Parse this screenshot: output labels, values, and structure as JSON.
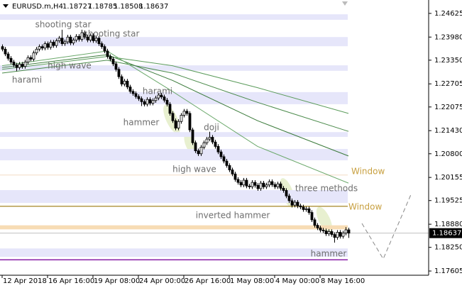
{
  "chart_data": {
    "type": "candlestick",
    "symbol": "EURUSD.m,H4",
    "ylim": [
      1.1749,
      1.2499
    ],
    "yticks": [
      1.24625,
      {
        "value": 1.2398,
        "label": "1.23980"
      },
      {
        "value": 1.2335,
        "label": "1.23350"
      },
      1.22705,
      1.22075,
      {
        "value": 1.2143,
        "label": "1.21430"
      },
      {
        "value": 1.208,
        "label": "1.20800"
      },
      1.20155,
      1.19525,
      {
        "value": 1.1888,
        "label": "1.18880"
      },
      {
        "value": 1.1825,
        "label": "1.18250"
      },
      1.17605
    ],
    "xticks": [
      {
        "value": 0,
        "label": "12 Apr 2018"
      },
      {
        "value": 16,
        "label": "16 Apr 16:00"
      },
      {
        "value": 32,
        "label": "19 Apr 08:00"
      },
      {
        "value": 48,
        "label": "24 Apr 00:00"
      },
      {
        "value": 64,
        "label": "26 Apr 16:00"
      },
      {
        "value": 80,
        "label": "1 May 08:00"
      },
      {
        "value": 96,
        "label": "4 May 00:00"
      },
      {
        "value": 112,
        "label": "8 May 16:00"
      }
    ],
    "bull_color": "#ffffff",
    "bear_color": "#000000",
    "wick_color": "#000000",
    "ohlc": [
      [
        1.2372,
        1.2378,
        1.2359,
        1.2365
      ],
      [
        1.2365,
        1.2371,
        1.2346,
        1.2352
      ],
      [
        1.2352,
        1.2358,
        1.2334,
        1.234
      ],
      [
        1.234,
        1.2346,
        1.2324,
        1.233
      ],
      [
        1.233,
        1.2336,
        1.2316,
        1.2322
      ],
      [
        1.2322,
        1.2328,
        1.2305,
        1.2315
      ],
      [
        1.2315,
        1.233,
        1.2309,
        1.2324
      ],
      [
        1.2324,
        1.233,
        1.2312,
        1.2318
      ],
      [
        1.2318,
        1.2336,
        1.2312,
        1.233
      ],
      [
        1.233,
        1.2348,
        1.2324,
        1.2342
      ],
      [
        1.2342,
        1.2348,
        1.2332,
        1.2338
      ],
      [
        1.2338,
        1.2361,
        1.2332,
        1.2355
      ],
      [
        1.2355,
        1.2371,
        1.2349,
        1.2365
      ],
      [
        1.2365,
        1.2378,
        1.2359,
        1.2372
      ],
      [
        1.2372,
        1.2378,
        1.2362,
        1.2368
      ],
      [
        1.2368,
        1.2386,
        1.2362,
        1.238
      ],
      [
        1.238,
        1.2386,
        1.2364,
        1.237
      ],
      [
        1.237,
        1.239,
        1.2364,
        1.2384
      ],
      [
        1.2384,
        1.239,
        1.2369,
        1.2375
      ],
      [
        1.2375,
        1.2394,
        1.2369,
        1.2388
      ],
      [
        1.2388,
        1.2401,
        1.2382,
        1.2395
      ],
      [
        1.2395,
        1.2418,
        1.2374,
        1.238
      ],
      [
        1.238,
        1.2391,
        1.2374,
        1.2385
      ],
      [
        1.2385,
        1.2404,
        1.2379,
        1.2398
      ],
      [
        1.2398,
        1.2404,
        1.2376,
        1.2382
      ],
      [
        1.2382,
        1.2396,
        1.2376,
        1.239
      ],
      [
        1.239,
        1.2406,
        1.2384,
        1.24
      ],
      [
        1.24,
        1.2406,
        1.2386,
        1.2392
      ],
      [
        1.2392,
        1.2418,
        1.2386,
        1.241
      ],
      [
        1.241,
        1.2416,
        1.2392,
        1.2398
      ],
      [
        1.2398,
        1.2404,
        1.2384,
        1.239
      ],
      [
        1.239,
        1.2408,
        1.2384,
        1.2402
      ],
      [
        1.2402,
        1.2408,
        1.2382,
        1.2388
      ],
      [
        1.2388,
        1.2401,
        1.2382,
        1.2395
      ],
      [
        1.2395,
        1.2401,
        1.2374,
        1.238
      ],
      [
        1.238,
        1.2386,
        1.2366,
        1.2372
      ],
      [
        1.2372,
        1.2378,
        1.2354,
        1.236
      ],
      [
        1.236,
        1.2366,
        1.2339,
        1.2345
      ],
      [
        1.2345,
        1.2351,
        1.2332,
        1.2338
      ],
      [
        1.2338,
        1.2344,
        1.2319,
        1.2325
      ],
      [
        1.2325,
        1.2331,
        1.2304,
        1.231
      ],
      [
        1.231,
        1.2316,
        1.2284,
        1.229
      ],
      [
        1.229,
        1.2296,
        1.2264,
        1.227
      ],
      [
        1.227,
        1.2284,
        1.2264,
        1.2278
      ],
      [
        1.2278,
        1.2284,
        1.2256,
        1.2262
      ],
      [
        1.2262,
        1.2268,
        1.2244,
        1.225
      ],
      [
        1.225,
        1.2256,
        1.2238,
        1.2244
      ],
      [
        1.2244,
        1.225,
        1.223,
        1.2236
      ],
      [
        1.2236,
        1.2242,
        1.2224,
        1.223
      ],
      [
        1.223,
        1.2236,
        1.221,
        1.2222
      ],
      [
        1.2222,
        1.2228,
        1.2209,
        1.2215
      ],
      [
        1.2215,
        1.2234,
        1.2209,
        1.2228
      ],
      [
        1.2228,
        1.2234,
        1.2212,
        1.2218
      ],
      [
        1.2218,
        1.2231,
        1.2212,
        1.2225
      ],
      [
        1.2225,
        1.2238,
        1.2219,
        1.2232
      ],
      [
        1.2232,
        1.2246,
        1.2226,
        1.224
      ],
      [
        1.224,
        1.2246,
        1.2229,
        1.2235
      ],
      [
        1.2235,
        1.2241,
        1.222,
        1.2226
      ],
      [
        1.2226,
        1.2232,
        1.2209,
        1.2215
      ],
      [
        1.2215,
        1.2221,
        1.2184,
        1.219
      ],
      [
        1.219,
        1.2196,
        1.2164,
        1.217
      ],
      [
        1.217,
        1.2176,
        1.2144,
        1.215
      ],
      [
        1.215,
        1.2174,
        1.2144,
        1.2168
      ],
      [
        1.2168,
        1.2191,
        1.2162,
        1.2185
      ],
      [
        1.2185,
        1.2202,
        1.2179,
        1.2196
      ],
      [
        1.2196,
        1.2202,
        1.2184,
        1.219
      ],
      [
        1.219,
        1.2196,
        1.2139,
        1.2145
      ],
      [
        1.2145,
        1.2151,
        1.2104,
        1.211
      ],
      [
        1.211,
        1.2116,
        1.2082,
        1.2088
      ],
      [
        1.2088,
        1.2094,
        1.2074,
        1.208
      ],
      [
        1.208,
        1.2104,
        1.2074,
        1.2098
      ],
      [
        1.2098,
        1.2116,
        1.2092,
        1.211
      ],
      [
        1.211,
        1.2126,
        1.2104,
        1.212
      ],
      [
        1.212,
        1.214,
        1.2114,
        1.2125
      ],
      [
        1.2125,
        1.2131,
        1.2106,
        1.2112
      ],
      [
        1.2112,
        1.2118,
        1.2094,
        1.21
      ],
      [
        1.21,
        1.2106,
        1.2079,
        1.2085
      ],
      [
        1.2085,
        1.2091,
        1.2066,
        1.2072
      ],
      [
        1.2072,
        1.2078,
        1.2054,
        1.206
      ],
      [
        1.206,
        1.2066,
        1.2042,
        1.2048
      ],
      [
        1.2048,
        1.2054,
        1.203,
        1.2036
      ],
      [
        1.2036,
        1.2042,
        1.2019,
        1.2025
      ],
      [
        1.2025,
        1.2031,
        1.2004,
        1.201
      ],
      [
        1.201,
        1.2016,
        1.1996,
        1.2002
      ],
      [
        1.2002,
        1.2008,
        1.1989,
        1.1995
      ],
      [
        1.1995,
        1.2014,
        1.1989,
        1.2008
      ],
      [
        1.2008,
        1.2014,
        1.1986,
        1.1992
      ],
      [
        1.1992,
        1.1998,
        1.1984,
        1.199
      ],
      [
        1.199,
        1.2008,
        1.1984,
        1.2002
      ],
      [
        1.2002,
        1.2008,
        1.1988,
        1.1994
      ],
      [
        1.1994,
        1.2,
        1.1979,
        1.1985
      ],
      [
        1.1985,
        1.2006,
        1.1979,
        1.2
      ],
      [
        1.2,
        1.2006,
        1.1984,
        1.199
      ],
      [
        1.199,
        1.2001,
        1.1984,
        1.1995
      ],
      [
        1.1995,
        1.201,
        1.1989,
        1.2004
      ],
      [
        1.2004,
        1.201,
        1.199,
        1.1996
      ],
      [
        1.1996,
        1.2002,
        1.1984,
        1.199
      ],
      [
        1.199,
        1.2004,
        1.1984,
        1.1998
      ],
      [
        1.1998,
        1.2004,
        1.198,
        1.1986
      ],
      [
        1.1986,
        1.1992,
        1.1974,
        1.198
      ],
      [
        1.198,
        1.1986,
        1.1959,
        1.1965
      ],
      [
        1.1965,
        1.1971,
        1.1946,
        1.1952
      ],
      [
        1.1952,
        1.1958,
        1.1934,
        1.194
      ],
      [
        1.194,
        1.1954,
        1.1934,
        1.1948
      ],
      [
        1.1948,
        1.1954,
        1.1932,
        1.1938
      ],
      [
        1.1938,
        1.1944,
        1.1929,
        1.1935
      ],
      [
        1.1935,
        1.1941,
        1.1922,
        1.1928
      ],
      [
        1.1928,
        1.1936,
        1.1922,
        1.193
      ],
      [
        1.193,
        1.1936,
        1.1914,
        1.192
      ],
      [
        1.192,
        1.1926,
        1.1894,
        1.19
      ],
      [
        1.19,
        1.1906,
        1.1879,
        1.1885
      ],
      [
        1.1885,
        1.1891,
        1.1872,
        1.1878
      ],
      [
        1.1878,
        1.1884,
        1.1866,
        1.1872
      ],
      [
        1.1872,
        1.1878,
        1.1864,
        1.187
      ],
      [
        1.187,
        1.1876,
        1.1856,
        1.1862
      ],
      [
        1.1862,
        1.1874,
        1.1856,
        1.1868
      ],
      [
        1.1868,
        1.1874,
        1.1854,
        1.186
      ],
      [
        1.186,
        1.1866,
        1.1838,
        1.1852
      ],
      [
        1.1852,
        1.1872,
        1.1846,
        1.1866
      ],
      [
        1.1866,
        1.1872,
        1.1849,
        1.1855
      ],
      [
        1.1855,
        1.187,
        1.1849,
        1.1864
      ],
      [
        1.1864,
        1.188,
        1.1858,
        1.18727
      ],
      [
        1.18727,
        1.18785,
        1.18508,
        1.18637
      ]
    ],
    "moving_averages": [
      {
        "color": "#5c9c5c",
        "x": [
          0,
          37,
          60,
          90,
          122
        ],
        "values": [
          1.231,
          1.2345,
          1.232,
          1.226,
          1.219
        ]
      },
      {
        "color": "#4a8a4a",
        "x": [
          0,
          37,
          60,
          90,
          122
        ],
        "values": [
          1.23,
          1.2335,
          1.23,
          1.222,
          1.2141
        ]
      },
      {
        "color": "#3a7a3a",
        "x": [
          0,
          37,
          60,
          90,
          122
        ],
        "values": [
          1.2315,
          1.235,
          1.228,
          1.217,
          1.2074
        ]
      },
      {
        "color": "#6aa86a",
        "x": [
          0,
          37,
          60,
          90,
          122
        ],
        "values": [
          1.232,
          1.236,
          1.225,
          1.21,
          1.2
        ]
      }
    ],
    "zones": {
      "color": "#e6e6fa",
      "ranges": [
        [
          1.246,
          1.2445
        ],
        [
          1.2398,
          1.2373
        ],
        [
          1.2321,
          1.2306
        ],
        [
          1.2248,
          1.2215
        ],
        [
          1.2139,
          1.2126
        ],
        [
          1.2093,
          1.2062
        ],
        [
          1.1981,
          1.1946
        ],
        [
          1.1822,
          1.1799
        ]
      ]
    },
    "band": {
      "color": "#f7dcb4",
      "range": [
        1.1885,
        1.1874
      ]
    },
    "levels": [
      {
        "value": 1.2022,
        "color": "#f3dcc6"
      },
      {
        "value": 1.1937,
        "color": "#b59a4a"
      },
      {
        "value": 1.1791,
        "color": "#8a1fa8"
      }
    ],
    "annotation_color": "#6e6e6e",
    "annotations": [
      "shooting star",
      "shooting star",
      "harami",
      "high wave",
      "harami",
      "hammer",
      "doji",
      "high wave",
      "three methods",
      "inverted hammer",
      "hammer"
    ],
    "window_color": "#c8a040",
    "window_labels": [
      "Window",
      "Window"
    ]
  }
}
